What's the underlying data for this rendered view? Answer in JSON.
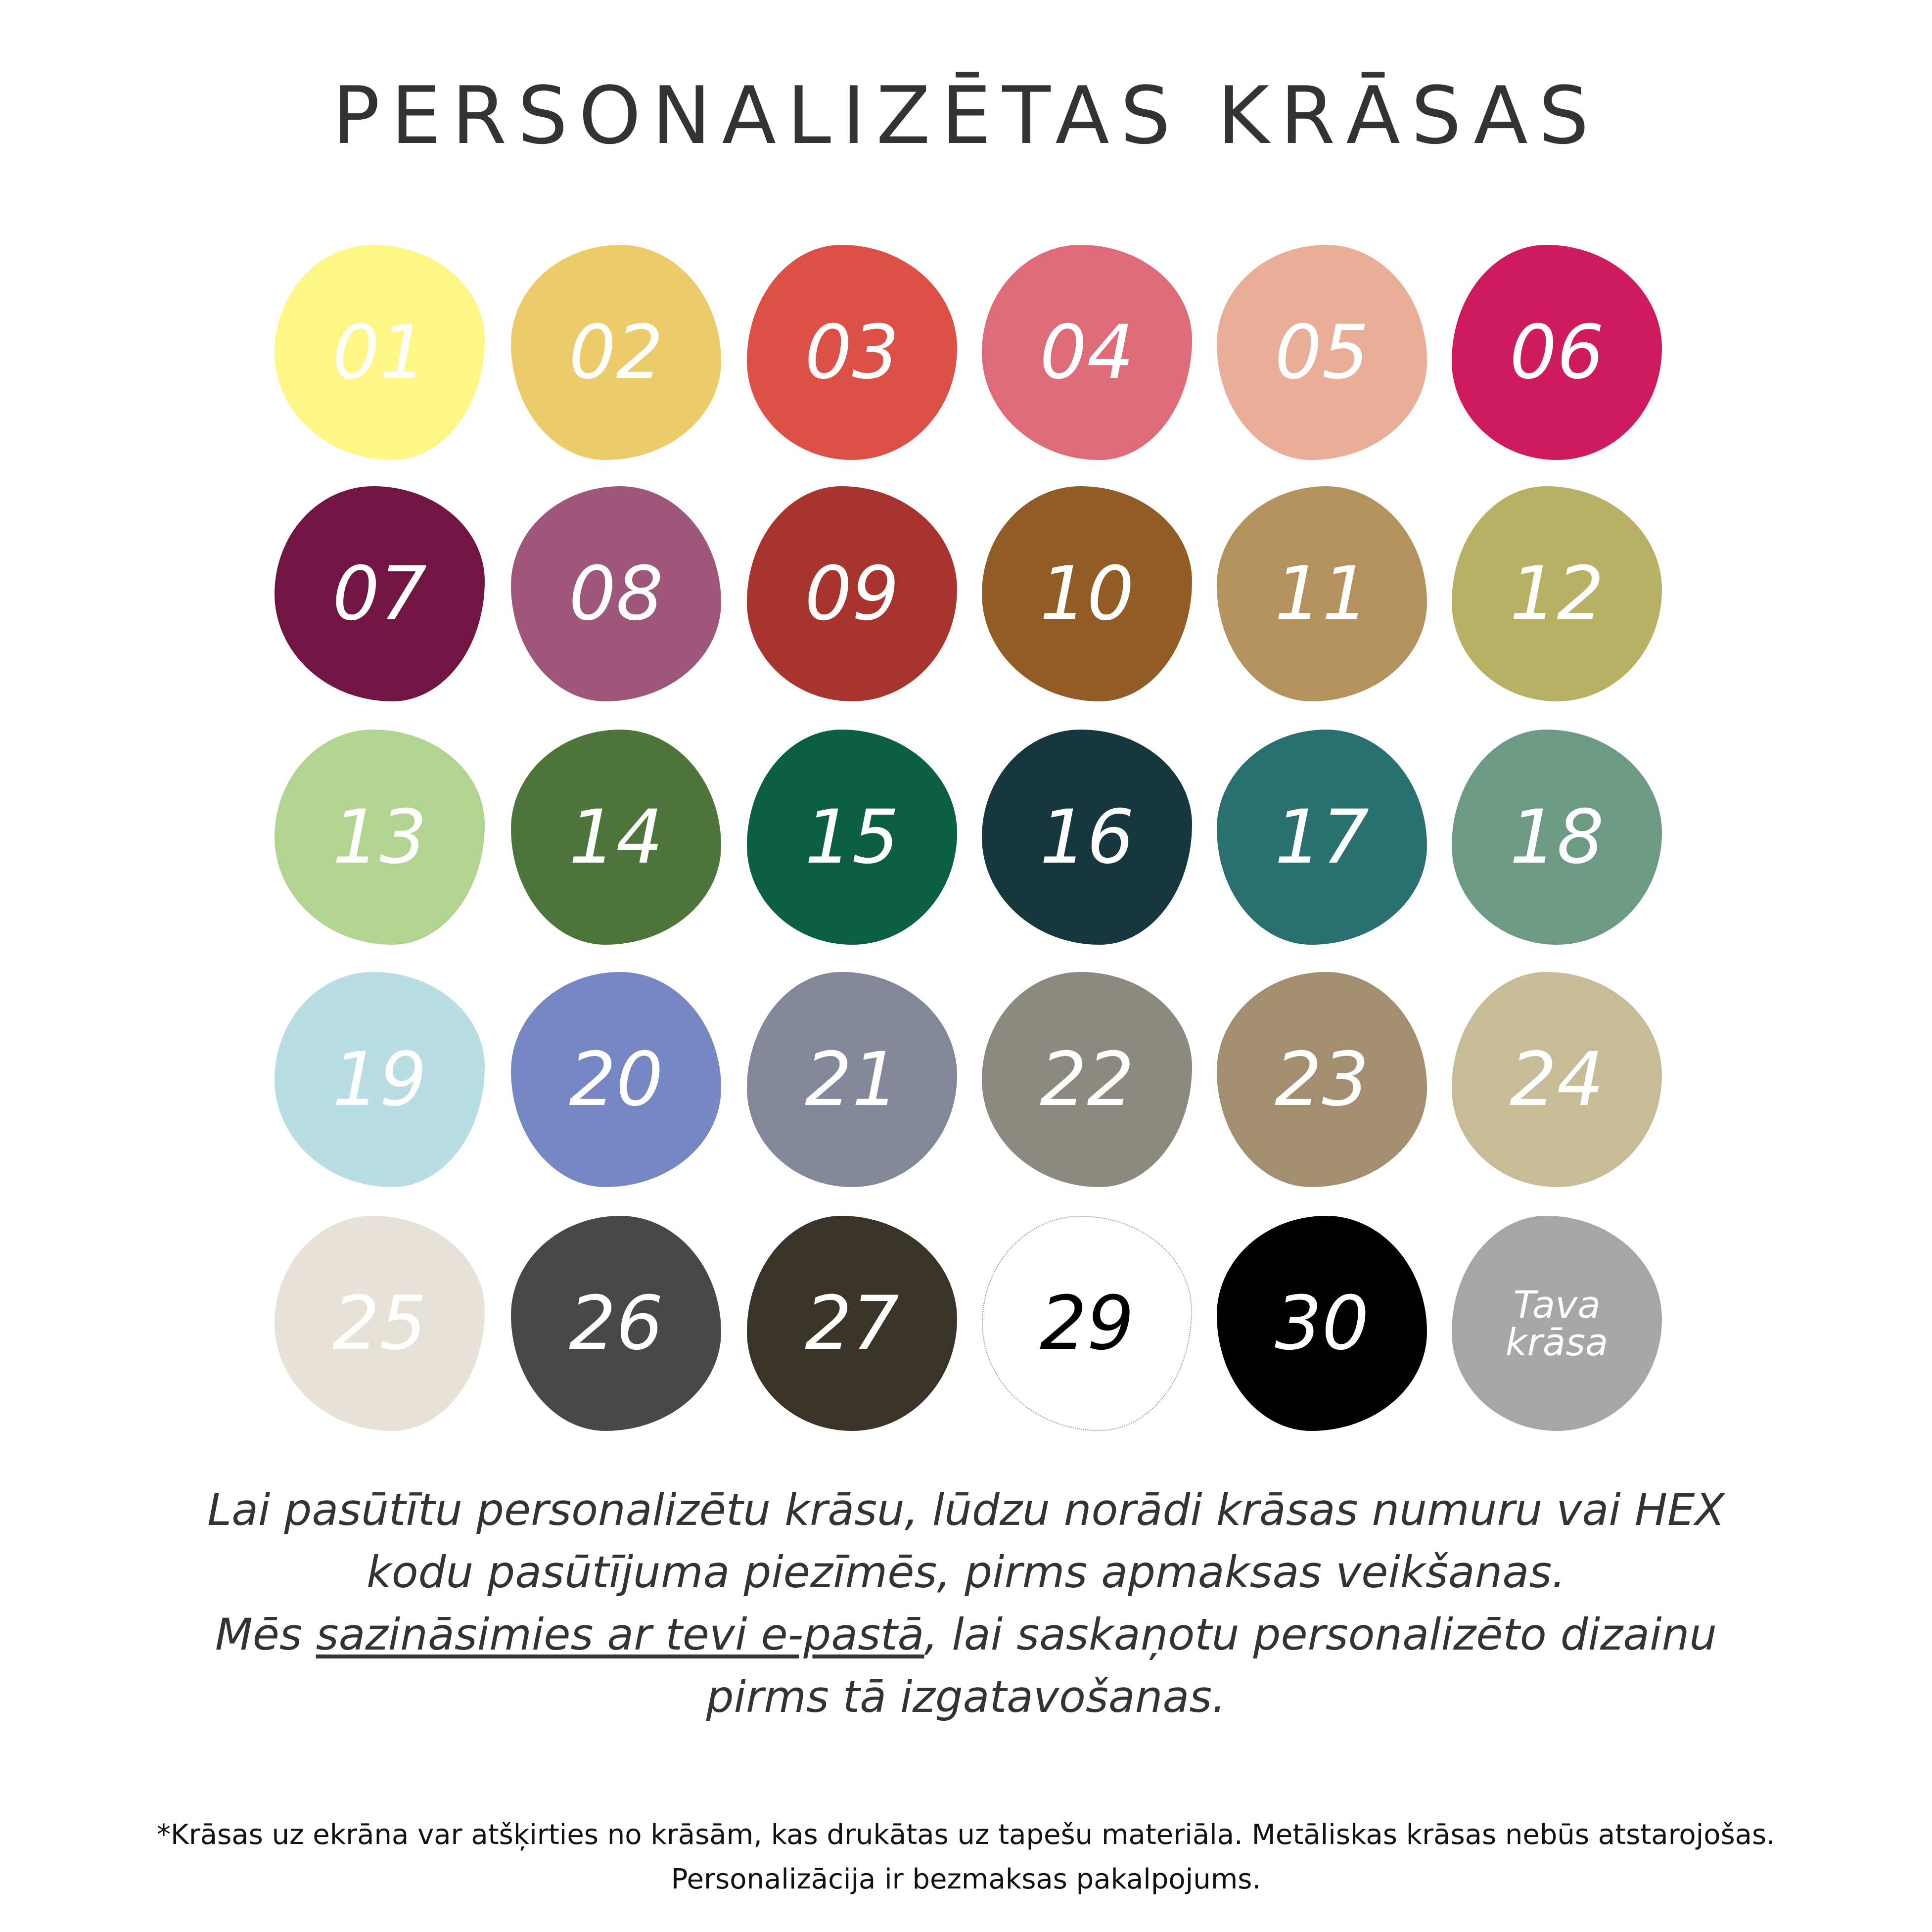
{
  "title": "PERSONALIZĒTAS KRĀSAS",
  "swatches": [
    {
      "label": "01",
      "color": "#fff685"
    },
    {
      "label": "02",
      "color": "#eccb68"
    },
    {
      "label": "03",
      "color": "#dc5045"
    },
    {
      "label": "04",
      "color": "#e06b78"
    },
    {
      "label": "05",
      "color": "#e9ae98"
    },
    {
      "label": "06",
      "color": "#d01a5e"
    },
    {
      "label": "07",
      "color": "#721544"
    },
    {
      "label": "08",
      "color": "#9e577a"
    },
    {
      "label": "09",
      "color": "#a8342d"
    },
    {
      "label": "10",
      "color": "#925c26"
    },
    {
      "label": "11",
      "color": "#b3925e"
    },
    {
      "label": "12",
      "color": "#b8b163"
    },
    {
      "label": "13",
      "color": "#b1d491"
    },
    {
      "label": "14",
      "color": "#4e763b"
    },
    {
      "label": "15",
      "color": "#0b5f42"
    },
    {
      "label": "16",
      "color": "#16373d"
    },
    {
      "label": "17",
      "color": "#2a7070"
    },
    {
      "label": "18",
      "color": "#6c9a85"
    },
    {
      "label": "19",
      "color": "#b8dde2"
    },
    {
      "label": "20",
      "color": "#7687c3"
    },
    {
      "label": "21",
      "color": "#848799"
    },
    {
      "label": "22",
      "color": "#8c8a80"
    },
    {
      "label": "23",
      "color": "#a38e70"
    },
    {
      "label": "24",
      "color": "#c8bc98"
    },
    {
      "label": "25",
      "color": "#e6e2d7"
    },
    {
      "label": "26",
      "color": "#484848"
    },
    {
      "label": "27",
      "color": "#3a3428"
    },
    {
      "label": "29",
      "color": "#ffffff"
    },
    {
      "label": "30",
      "color": "#000000"
    },
    {
      "label": "Tava krāsa",
      "color": "#a6a6a6"
    }
  ],
  "paragraph": {
    "line1": "Lai pasūtītu personalizētu krāsu, lūdzu norādi krāsas numuru vai HEX",
    "line2": "kodu pasūtījuma piezīmēs, pirms apmaksas veikšanas.",
    "line3_start": "Mēs ",
    "line3_link": "sazināsimies ar tevi e-pastā",
    "line3_end": ", lai saskaņotu personalizēto dizainu",
    "line4": "pirms tā izgatavošanas."
  },
  "footnote": {
    "line1": "*Krāsas uz ekrāna var atšķirties no krāsām, kas drukātas uz tapešu materiāla. Metāliskas krāsas nebūs atstarojošas.",
    "line2": "Personalizācija ir bezmaksas pakalpojums."
  }
}
